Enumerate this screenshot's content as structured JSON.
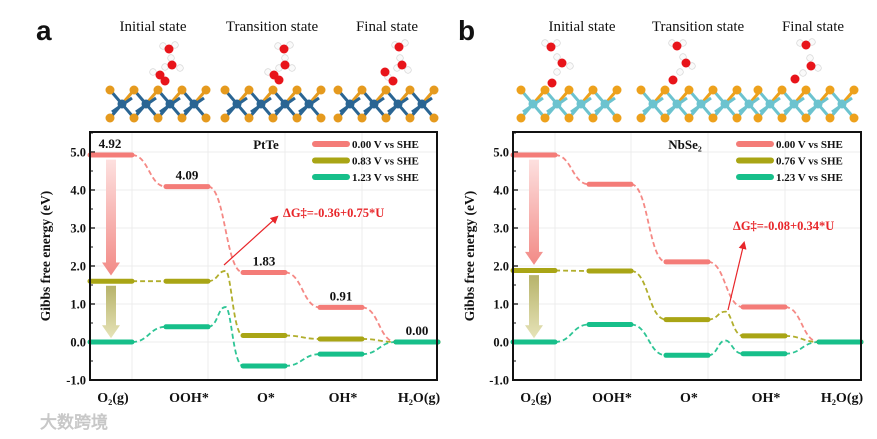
{
  "panels": [
    {
      "label": "a",
      "states": [
        "Initial state",
        "Transition state",
        "Final state"
      ],
      "metal_color": "#2a6593",
      "chalcogen_color": "#e59a1e"
    },
    {
      "label": "b",
      "states": [
        "Initial state",
        "Transition state",
        "Final state"
      ],
      "metal_color": "#6cc3cf",
      "chalcogen_color": "#eda11c"
    }
  ],
  "watermark": "大数跨境",
  "chart_data": [
    {
      "type": "line",
      "title": "PtTe",
      "xlabel": "",
      "ylabel": "Gibbs free energy (eV)",
      "ylim": [
        -1.0,
        5.0
      ],
      "yticks": [
        "-1.0",
        "0.0",
        "1.0",
        "2.0",
        "3.0",
        "4.0",
        "5.0"
      ],
      "categories": [
        "O₂(g)",
        "OOH*",
        "O*",
        "OH*",
        "H₂O(g)"
      ],
      "grid": true,
      "legend_position": "top-right",
      "series": [
        {
          "name": "0.00 V vs SHE",
          "color": "#f47c78",
          "values": [
            4.92,
            4.09,
            1.83,
            0.91,
            0.0
          ]
        },
        {
          "name": "0.83 V vs SHE",
          "color": "#a9a515",
          "values": [
            1.6,
            1.6,
            0.17,
            0.08,
            0.0
          ],
          "transition_state": {
            "after_index": 1,
            "value": 1.87
          }
        },
        {
          "name": "1.23 V vs SHE",
          "color": "#17bf8a",
          "values": [
            0.0,
            0.4,
            -0.63,
            -0.32,
            0.0
          ],
          "transition_state": {
            "after_index": 1,
            "value": 0.92
          }
        }
      ],
      "data_labels": [
        "4.92",
        "4.09",
        "1.83",
        "0.91",
        "0.00"
      ],
      "annotation": "ΔG‡=-0.36+0.75*U",
      "annotation_color": "#e8262a"
    },
    {
      "type": "line",
      "title": "NbSe₂",
      "xlabel": "",
      "ylabel": "Gibbs free energy (eV)",
      "ylim": [
        -1.0,
        5.0
      ],
      "yticks": [
        "-1.0",
        "0.0",
        "1.0",
        "2.0",
        "3.0",
        "4.0",
        "5.0"
      ],
      "categories": [
        "O₂(g)",
        "OOH*",
        "O*",
        "OH*",
        "H₂O(g)"
      ],
      "grid": true,
      "legend_position": "top-right",
      "series": [
        {
          "name": "0.00 V vs SHE",
          "color": "#f47c78",
          "values": [
            4.92,
            4.15,
            2.11,
            0.92,
            0.0
          ]
        },
        {
          "name": "0.76 V vs SHE",
          "color": "#a9a515",
          "values": [
            1.88,
            1.87,
            0.59,
            0.16,
            0.0
          ],
          "transition_state": {
            "after_index": 2,
            "value": 0.8
          }
        },
        {
          "name": "1.23 V vs SHE",
          "color": "#17bf8a",
          "values": [
            0.0,
            0.46,
            -0.35,
            -0.31,
            0.0
          ],
          "transition_state": {
            "after_index": 2,
            "value": 0.04
          }
        }
      ],
      "data_labels": [],
      "annotation": "ΔG‡=-0.08+0.34*U",
      "annotation_color": "#e8262a"
    }
  ]
}
